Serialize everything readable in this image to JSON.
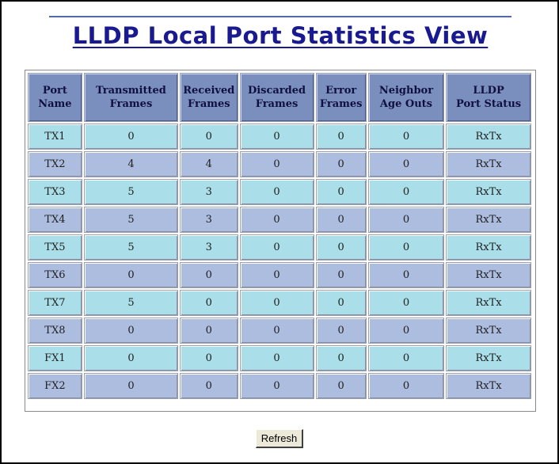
{
  "page": {
    "title": "LLDP Local Port Statistics View"
  },
  "table": {
    "headers": [
      [
        "Port",
        "Name"
      ],
      [
        "Transmitted",
        "Frames"
      ],
      [
        "Received",
        "Frames"
      ],
      [
        "Discarded",
        "Frames"
      ],
      [
        "Error",
        "Frames"
      ],
      [
        "Neighbor",
        "Age Outs"
      ],
      [
        "LLDP",
        "Port Status"
      ]
    ],
    "rows": [
      [
        "TX1",
        "0",
        "0",
        "0",
        "0",
        "0",
        "RxTx"
      ],
      [
        "TX2",
        "4",
        "4",
        "0",
        "0",
        "0",
        "RxTx"
      ],
      [
        "TX3",
        "5",
        "3",
        "0",
        "0",
        "0",
        "RxTx"
      ],
      [
        "TX4",
        "5",
        "3",
        "0",
        "0",
        "0",
        "RxTx"
      ],
      [
        "TX5",
        "5",
        "3",
        "0",
        "0",
        "0",
        "RxTx"
      ],
      [
        "TX6",
        "0",
        "0",
        "0",
        "0",
        "0",
        "RxTx"
      ],
      [
        "TX7",
        "5",
        "0",
        "0",
        "0",
        "0",
        "RxTx"
      ],
      [
        "TX8",
        "0",
        "0",
        "0",
        "0",
        "0",
        "RxTx"
      ],
      [
        "FX1",
        "0",
        "0",
        "0",
        "0",
        "0",
        "RxTx"
      ],
      [
        "FX2",
        "0",
        "0",
        "0",
        "0",
        "0",
        "RxTx"
      ]
    ]
  },
  "actions": {
    "refresh_label": "Refresh"
  },
  "colors": {
    "title": "#1a1a90",
    "header_bg": "#7b8fbe",
    "row_odd_bg": "#aadfe9",
    "row_even_bg": "#adbde0"
  }
}
